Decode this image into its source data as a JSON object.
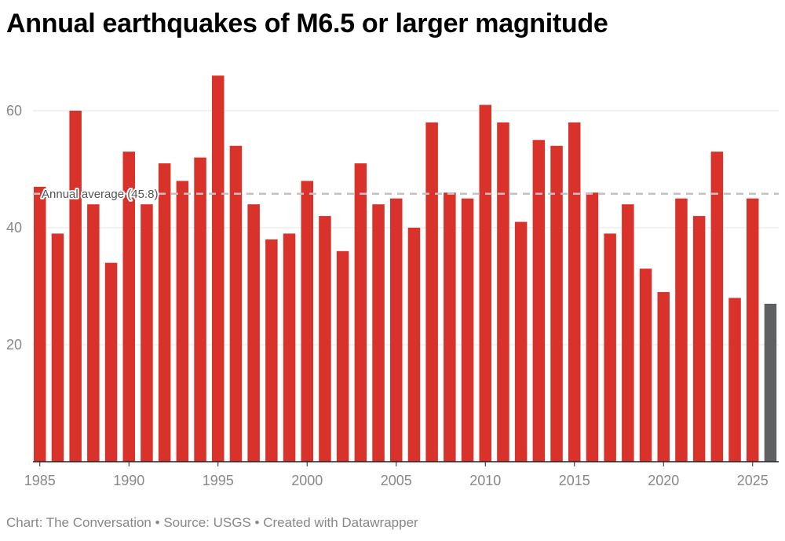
{
  "title": "Annual earthquakes of M6.5 or larger magnitude",
  "footer": {
    "credit": "Chart: The Conversation",
    "source": "Source: USGS",
    "tool": "Created with Datawrapper",
    "separator": " • "
  },
  "colors": {
    "bar": "#d9322a",
    "bar_highlight": "#5f6062",
    "grid": "#e6e6e6",
    "average_line": "#c2c2c2",
    "axis": "#222222"
  },
  "chart_data": {
    "type": "bar",
    "title": "Annual earthquakes of M6.5 or larger magnitude",
    "xlabel": "",
    "ylabel": "",
    "ylim": [
      0,
      67
    ],
    "yticks": [
      20,
      40,
      60
    ],
    "xticks": [
      1985,
      1990,
      1995,
      2000,
      2005,
      2010,
      2015,
      2020,
      2025
    ],
    "grid": true,
    "categories": [
      1985,
      1986,
      1987,
      1988,
      1989,
      1990,
      1991,
      1992,
      1993,
      1994,
      1995,
      1996,
      1997,
      1998,
      1999,
      2000,
      2001,
      2002,
      2003,
      2004,
      2005,
      2006,
      2007,
      2008,
      2009,
      2010,
      2011,
      2012,
      2013,
      2014,
      2015,
      2016,
      2017,
      2018,
      2019,
      2020,
      2021,
      2022,
      2023,
      2024,
      2025,
      2026
    ],
    "values": [
      47,
      39,
      60,
      44,
      34,
      53,
      44,
      51,
      48,
      52,
      66,
      54,
      44,
      38,
      39,
      48,
      42,
      36,
      51,
      44,
      45,
      40,
      58,
      46,
      45,
      61,
      58,
      41,
      55,
      54,
      58,
      46,
      39,
      44,
      33,
      29,
      45,
      42,
      53,
      28,
      45,
      27
    ],
    "highlighted_categories": [
      2026
    ],
    "annotations": [
      {
        "type": "hline",
        "y": 45.8,
        "label": "Annual average (45.8)"
      }
    ]
  }
}
